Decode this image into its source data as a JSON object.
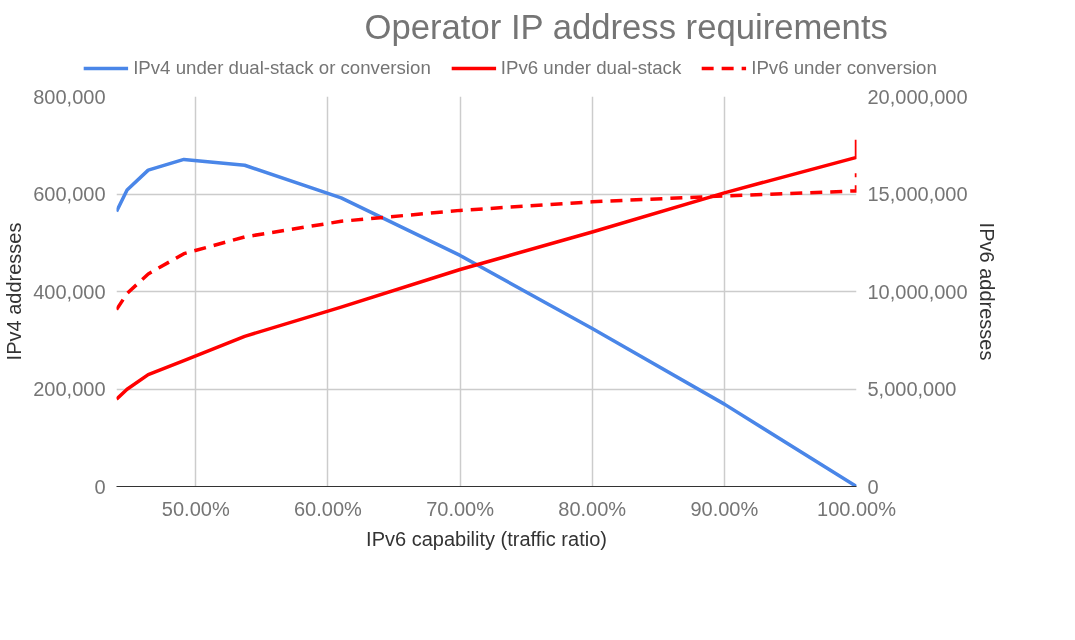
{
  "chart_data": {
    "type": "line",
    "title": "Operator IP address requirements",
    "xlabel": "IPv6 capability (traffic ratio)",
    "ylabel": "IPv4 addresses",
    "y2label": "IPv6 addresses",
    "x": [
      44.0,
      44.8,
      46.4,
      49.1,
      53.7,
      61,
      70,
      80,
      90,
      100
    ],
    "series": [
      {
        "name": "IPv4 under dual-stack or conversion",
        "color": "#4a86e8",
        "line_style": "solid",
        "values": [
          564000,
          608000,
          649000,
          671000,
          659000,
          592000,
          474000,
          324000,
          169000,
          0
        ]
      },
      {
        "name": "IPv6 under dual-stack",
        "color": "#ff0000",
        "line_style": "solid",
        "axis": "y2",
        "x": [
          44.0,
          44.8,
          46.4,
          49.1,
          53.7,
          61,
          70,
          80,
          90,
          100,
          100
        ],
        "values": [
          4480000,
          4990000,
          5740000,
          6450000,
          7700000,
          9200000,
          11130000,
          13050000,
          15060000,
          16880000,
          17780000
        ]
      },
      {
        "name": "IPv6 under conversion",
        "color": "#ff0000",
        "line_style": "dashed",
        "axis": "y2",
        "x": [
          44.0,
          44.8,
          46.4,
          49.1,
          53.7,
          61,
          70,
          80,
          90,
          100,
          100
        ],
        "values": [
          9070000,
          9900000,
          10900000,
          11940000,
          12800000,
          13600000,
          14160000,
          14600000,
          14900000,
          15160000,
          16070000
        ]
      }
    ],
    "xlim": [
      44,
      100
    ],
    "xticks": [
      {
        "value": 50,
        "label": "50.00%"
      },
      {
        "value": 60,
        "label": "60.00%"
      },
      {
        "value": 70,
        "label": "70.00%"
      },
      {
        "value": 80,
        "label": "80.00%"
      },
      {
        "value": 90,
        "label": "90.00%"
      },
      {
        "value": 100,
        "label": "100.00%"
      }
    ],
    "ylim": [
      0,
      800000
    ],
    "yticks": [
      {
        "value": 0,
        "label": "0"
      },
      {
        "value": 200000,
        "label": "200,000"
      },
      {
        "value": 400000,
        "label": "400,000"
      },
      {
        "value": 600000,
        "label": "600,000"
      },
      {
        "value": 800000,
        "label": "800,000"
      }
    ],
    "y2lim": [
      0,
      20000000
    ],
    "y2ticks": [
      {
        "value": 0,
        "label": "0"
      },
      {
        "value": 5000000,
        "label": "5,000,000"
      },
      {
        "value": 10000000,
        "label": "10,000,000"
      },
      {
        "value": 15000000,
        "label": "15,000,000"
      },
      {
        "value": 20000000,
        "label": "20,000,000"
      }
    ],
    "grid": true,
    "legend": "top"
  }
}
